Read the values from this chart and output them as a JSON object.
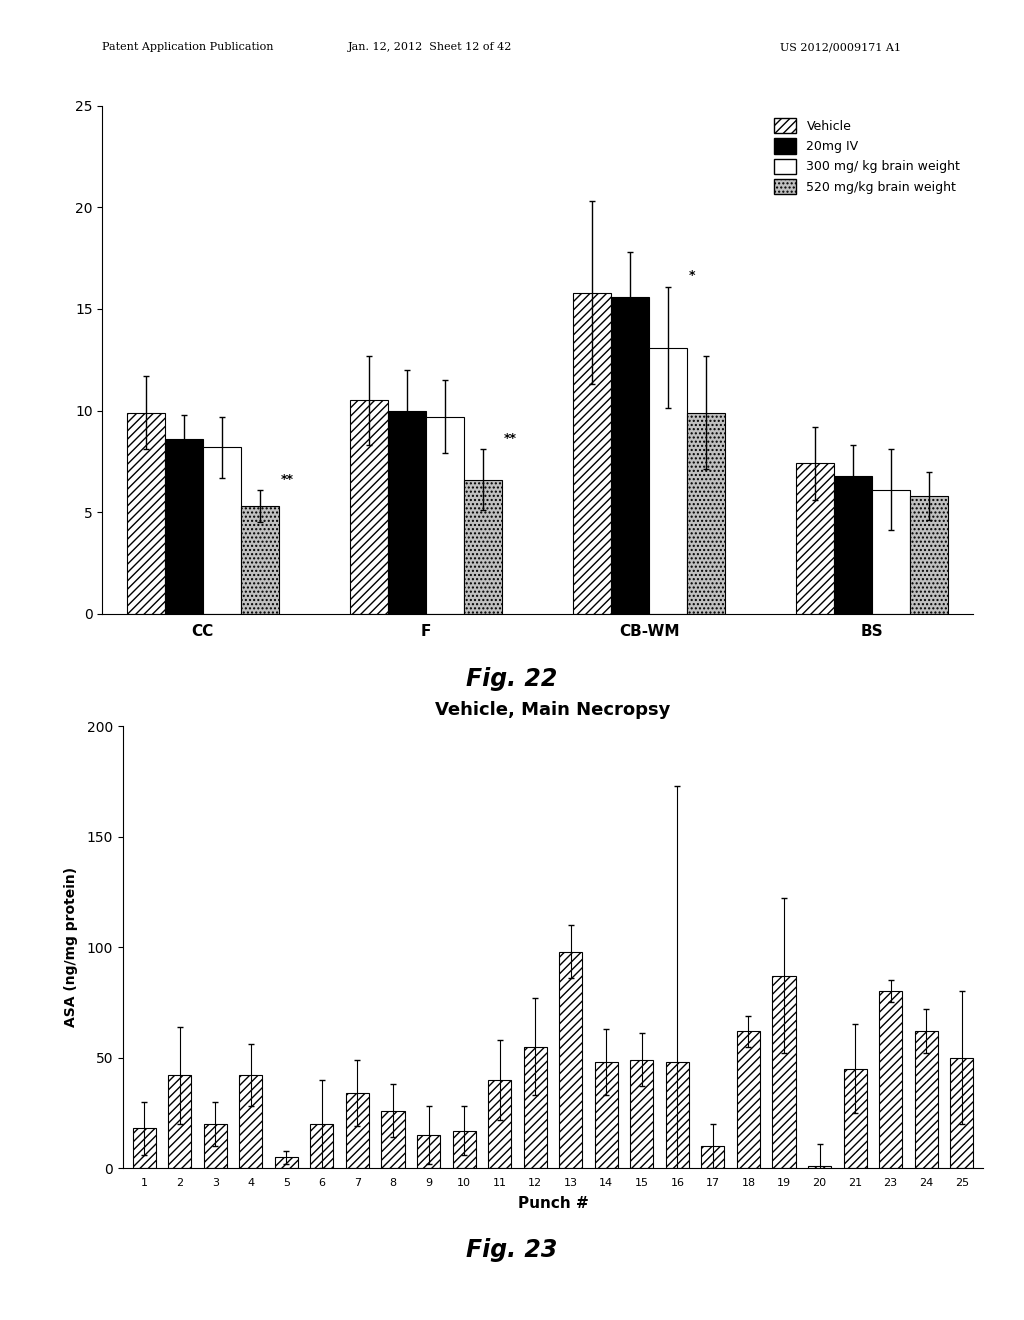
{
  "fig22": {
    "categories": [
      "CC",
      "F",
      "CB-WM",
      "BS"
    ],
    "groups": [
      "Vehicle",
      "20mg IV",
      "300 mg/ kg brain weight",
      "520 mg/kg brain weight"
    ],
    "values": [
      [
        9.9,
        8.6,
        8.2,
        5.3
      ],
      [
        10.5,
        10.0,
        9.7,
        6.6
      ],
      [
        15.8,
        15.6,
        13.1,
        9.9
      ],
      [
        7.4,
        6.8,
        6.1,
        5.8
      ]
    ],
    "errors": [
      [
        1.8,
        1.2,
        1.5,
        0.8
      ],
      [
        2.2,
        2.0,
        1.8,
        1.5
      ],
      [
        4.5,
        2.2,
        3.0,
        2.8
      ],
      [
        1.8,
        1.5,
        2.0,
        1.2
      ]
    ],
    "ylim": [
      0,
      25
    ],
    "yticks": [
      0,
      5,
      10,
      15,
      20,
      25
    ]
  },
  "fig23": {
    "title": "Vehicle, Main Necropsy",
    "xlabel": "Punch #",
    "ylabel": "ASA (ng/mg protein)",
    "xlabels": [
      "1",
      "2",
      "3",
      "4",
      "5",
      "6",
      "7",
      "8",
      "9",
      "10",
      "11",
      "12",
      "13",
      "14",
      "15",
      "16",
      "17",
      "18",
      "19",
      "20",
      "21",
      "23",
      "24",
      "25"
    ],
    "values": [
      18,
      42,
      20,
      42,
      5,
      20,
      34,
      26,
      15,
      17,
      40,
      55,
      98,
      48,
      49,
      48,
      10,
      62,
      87,
      1,
      45,
      80,
      62,
      50
    ],
    "errors": [
      12,
      22,
      10,
      14,
      3,
      20,
      15,
      12,
      13,
      11,
      18,
      22,
      12,
      15,
      12,
      125,
      10,
      7,
      35,
      10,
      20,
      5,
      10,
      30
    ],
    "ylim": [
      0,
      200
    ],
    "yticks": [
      0,
      50,
      100,
      150,
      200
    ]
  },
  "header_left": "Patent Application Publication",
  "header_mid": "Jan. 12, 2012  Sheet 12 of 42",
  "header_right": "US 2012/0009171 A1",
  "bg_color": "#ffffff"
}
